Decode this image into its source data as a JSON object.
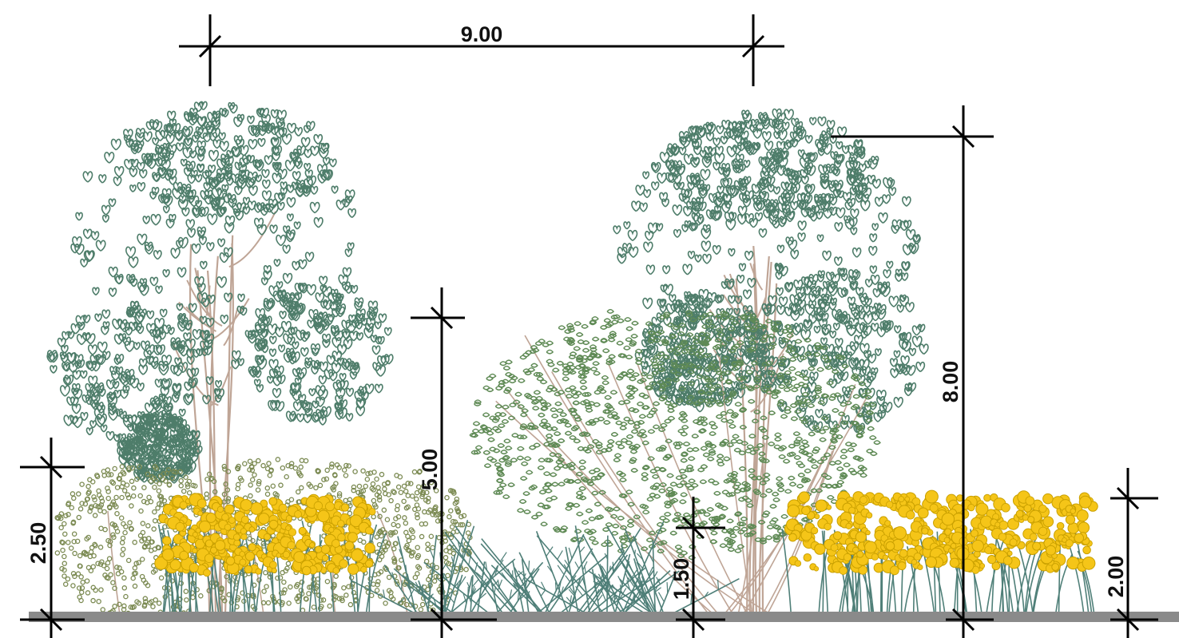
{
  "dimensions": {
    "tree_spacing": "9.00",
    "tree_height": "8.00",
    "shrub_height": "5.00",
    "hedge_height": "2.50",
    "grass_height": "1.50",
    "perennial_height": "2.00"
  },
  "colors": {
    "tree_foliage": "#4e7d6a",
    "shrub_foliage": "#5f8a55",
    "hedge_foliage": "#7b8a52",
    "flower": "#f5c518",
    "flower_stroke": "#c9a000",
    "grass": "#4f7f78",
    "trunk": "#bfa596",
    "ground": "#8a8a8a",
    "dimension_line": "#000000"
  }
}
